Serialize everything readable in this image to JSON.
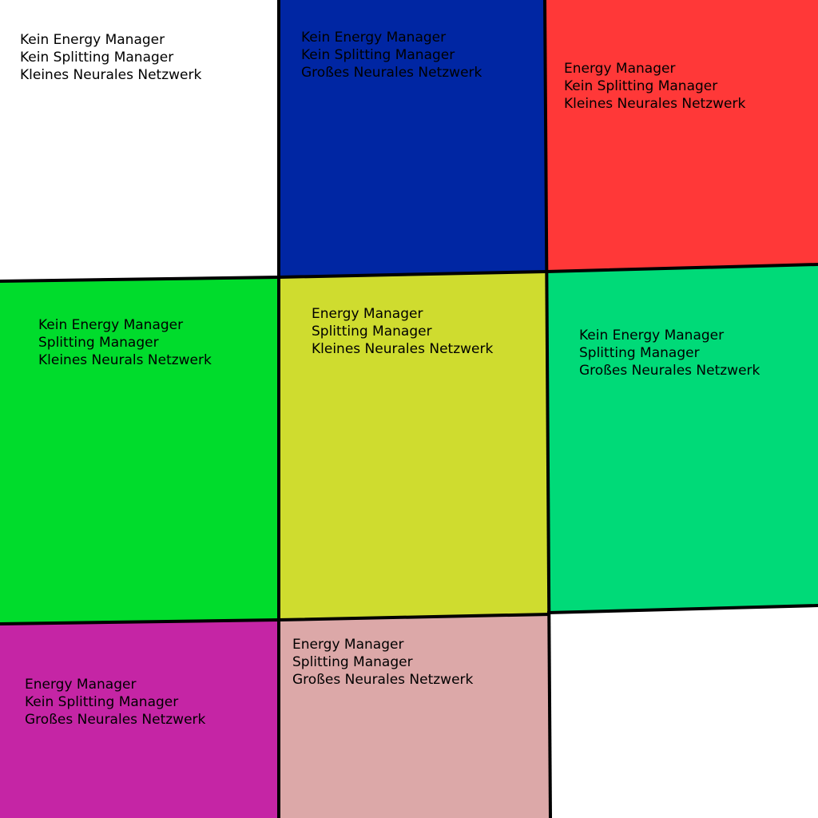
{
  "cells": [
    {
      "id": "c1",
      "color": "#ffffff",
      "lines": [
        "Kein Energy Manager",
        "Kein Splitting Manager",
        "Kleines Neurales Netzwerk"
      ]
    },
    {
      "id": "c2",
      "color": "#0026a3",
      "lines": [
        "Kein Energy Manager",
        "Kein Splitting Manager",
        "Großes Neurales Netzwerk"
      ]
    },
    {
      "id": "c3",
      "color": "#ff3838",
      "lines": [
        "Energy Manager",
        "Kein Splitting Manager",
        "Kleines Neurales Netzwerk"
      ]
    },
    {
      "id": "c4",
      "color": "#00dc2c",
      "lines": [
        "Kein Energy Manager",
        "Splitting Manager",
        "Kleines Neurals Netzwerk"
      ]
    },
    {
      "id": "c5",
      "color": "#cfdc2f",
      "lines": [
        "Energy Manager",
        "Splitting Manager",
        "Kleines Neurales Netzwerk"
      ]
    },
    {
      "id": "c6",
      "color": "#00da78",
      "lines": [
        "Kein Energy Manager",
        "Splitting Manager",
        "Großes Neurales Netzwerk"
      ]
    },
    {
      "id": "c7",
      "color": "#c525a5",
      "lines": [
        "Energy Manager",
        "Kein Splitting Manager",
        "Großes Neurales Netzwerk"
      ]
    },
    {
      "id": "c8",
      "color": "#dca8a8",
      "lines": [
        "Energy Manager",
        "Splitting Manager",
        "Großes Neurales Netzwerk"
      ]
    }
  ],
  "empty_cell_color": "#ffffff",
  "border_color": "#000000"
}
